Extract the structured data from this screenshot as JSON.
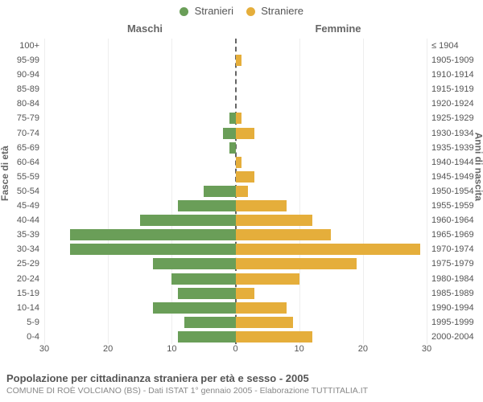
{
  "chart": {
    "type": "population-pyramid",
    "background_color": "#ffffff",
    "text_color": "#555555",
    "grid_color": "#eeeeee",
    "center_line_color": "#666666",
    "left_header": "Maschi",
    "right_header": "Femmine",
    "y_title_left": "Fasce di età",
    "y_title_right": "Anni di nascita",
    "legend": [
      {
        "label": "Stranieri",
        "color": "#6a9e58"
      },
      {
        "label": "Straniere",
        "color": "#e5ae3b"
      }
    ],
    "x_axis": {
      "max": 30,
      "ticks": [
        30,
        20,
        10,
        0,
        10,
        20,
        30
      ]
    },
    "series_colors": {
      "male": "#6a9e58",
      "female": "#e5ae3b"
    },
    "rows": [
      {
        "age": "100+",
        "birth": "≤ 1904",
        "male": 0,
        "female": 0
      },
      {
        "age": "95-99",
        "birth": "1905-1909",
        "male": 0,
        "female": 1
      },
      {
        "age": "90-94",
        "birth": "1910-1914",
        "male": 0,
        "female": 0
      },
      {
        "age": "85-89",
        "birth": "1915-1919",
        "male": 0,
        "female": 0
      },
      {
        "age": "80-84",
        "birth": "1920-1924",
        "male": 0,
        "female": 0
      },
      {
        "age": "75-79",
        "birth": "1925-1929",
        "male": 1,
        "female": 1
      },
      {
        "age": "70-74",
        "birth": "1930-1934",
        "male": 2,
        "female": 3
      },
      {
        "age": "65-69",
        "birth": "1935-1939",
        "male": 1,
        "female": 0
      },
      {
        "age": "60-64",
        "birth": "1940-1944",
        "male": 0,
        "female": 1
      },
      {
        "age": "55-59",
        "birth": "1945-1949",
        "male": 0,
        "female": 3
      },
      {
        "age": "50-54",
        "birth": "1950-1954",
        "male": 5,
        "female": 2
      },
      {
        "age": "45-49",
        "birth": "1955-1959",
        "male": 9,
        "female": 8
      },
      {
        "age": "40-44",
        "birth": "1960-1964",
        "male": 15,
        "female": 12
      },
      {
        "age": "35-39",
        "birth": "1965-1969",
        "male": 26,
        "female": 15
      },
      {
        "age": "30-34",
        "birth": "1970-1974",
        "male": 26,
        "female": 29
      },
      {
        "age": "25-29",
        "birth": "1975-1979",
        "male": 13,
        "female": 19
      },
      {
        "age": "20-24",
        "birth": "1980-1984",
        "male": 10,
        "female": 10
      },
      {
        "age": "15-19",
        "birth": "1985-1989",
        "male": 9,
        "female": 3
      },
      {
        "age": "10-14",
        "birth": "1990-1994",
        "male": 13,
        "female": 8
      },
      {
        "age": "5-9",
        "birth": "1995-1999",
        "male": 8,
        "female": 9
      },
      {
        "age": "0-4",
        "birth": "2000-2004",
        "male": 9,
        "female": 12
      }
    ]
  },
  "caption": {
    "title": "Popolazione per cittadinanza straniera per età e sesso - 2005",
    "subtitle": "COMUNE DI ROÈ VOLCIANO (BS) - Dati ISTAT 1° gennaio 2005 - Elaborazione TUTTITALIA.IT"
  }
}
